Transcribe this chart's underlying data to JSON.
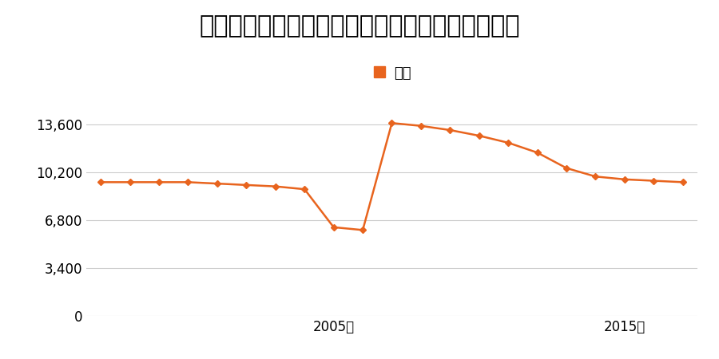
{
  "title": "青森県上北郡東北町字大平１番１４４の地価推移",
  "legend_label": "価格",
  "years": [
    1997,
    1998,
    1999,
    2000,
    2001,
    2002,
    2003,
    2004,
    2005,
    2006,
    2007,
    2008,
    2009,
    2010,
    2011,
    2012,
    2013,
    2014,
    2015,
    2016,
    2017
  ],
  "values": [
    9500,
    9500,
    9500,
    9500,
    9400,
    9300,
    9200,
    9000,
    6300,
    6100,
    13700,
    13500,
    13200,
    12800,
    12300,
    11600,
    10500,
    9900,
    9700,
    9600,
    9500
  ],
  "line_color": "#e8641e",
  "marker": "D",
  "marker_size": 4,
  "background_color": "#ffffff",
  "grid_color": "#cccccc",
  "ylim": [
    0,
    15300
  ],
  "yticks": [
    0,
    3400,
    6800,
    10200,
    13600
  ],
  "xtick_years": [
    2005,
    2015
  ],
  "title_fontsize": 22,
  "legend_fontsize": 13,
  "tick_fontsize": 12
}
